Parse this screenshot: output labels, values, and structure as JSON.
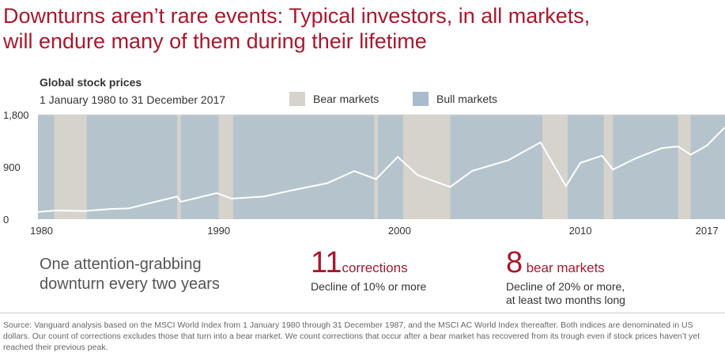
{
  "title_line1": "Downturns aren’t rare events: Typical investors, in all markets,",
  "title_line2": "will endure many of them during their lifetime",
  "chart_data": {
    "type": "line",
    "title": "Global stock prices",
    "subtitle": "1 January 1980 to 31 December 2017",
    "legend": [
      {
        "label": "Bear markets",
        "color": "#d6d3cc"
      },
      {
        "label": "Bull markets",
        "color": "#b5c4cc"
      }
    ],
    "legend_placement": "top",
    "ylim": [
      0,
      1800
    ],
    "yticks": [
      "0",
      "900",
      "1,800"
    ],
    "ytick_values": [
      0,
      900,
      1800
    ],
    "xlim": [
      1980,
      2018
    ],
    "xticks": [
      "1980",
      "1990",
      "2000",
      "2010",
      "2017"
    ],
    "xtick_values": [
      1980.2,
      1990,
      2000,
      2010,
      2017
    ],
    "line_color": "#ffffff",
    "bear_periods": [
      [
        1980.9,
        1982.7
      ],
      [
        1987.7,
        1987.9
      ],
      [
        1990.0,
        1990.8
      ],
      [
        1998.6,
        1998.8
      ],
      [
        2000.2,
        2002.8
      ],
      [
        2007.9,
        2009.3
      ],
      [
        2011.3,
        2011.8
      ],
      [
        2015.4,
        2016.1
      ]
    ],
    "series": [
      {
        "name": "Global stock prices",
        "x": [
          1980,
          1981,
          1982.5,
          1984,
          1985,
          1986.5,
          1987.7,
          1987.9,
          1989.9,
          1990.7,
          1992.5,
          1994,
          1996,
          1997.5,
          1998.7,
          1999.9,
          2001,
          2002.8,
          2004,
          2006,
          2007.8,
          2009.2,
          2010,
          2011.2,
          2011.8,
          2013,
          2014.5,
          2015.4,
          2016.1,
          2017,
          2018
        ],
        "y": [
          125,
          150,
          140,
          175,
          185,
          300,
          390,
          300,
          450,
          355,
          390,
          495,
          620,
          830,
          690,
          1075,
          760,
          555,
          830,
          1015,
          1325,
          570,
          970,
          1095,
          855,
          1040,
          1225,
          1255,
          1110,
          1270,
          1585
        ]
      }
    ]
  },
  "stats": {
    "headline": [
      "One attention-grabbing",
      "downturn every two years"
    ],
    "corrections": {
      "number": "11",
      "unit": "corrections",
      "desc": "Decline of 10% or more"
    },
    "bear": {
      "number": "8",
      "unit": "bear markets",
      "desc1": "Decline of 20% or more,",
      "desc2": "at least two months long"
    }
  },
  "source": "Source: Vanguard analysis based on the MSCI World Index from 1 January 1980 through 31 December 1987, and the MSCI AC World Index thereafter. Both indices are denominated in US dollars. Our count of corrections excludes those that turn into a bear market. We count corrections that occur after a bear market has recovered from its trough even if stock prices haven’t yet reached their previous peak."
}
